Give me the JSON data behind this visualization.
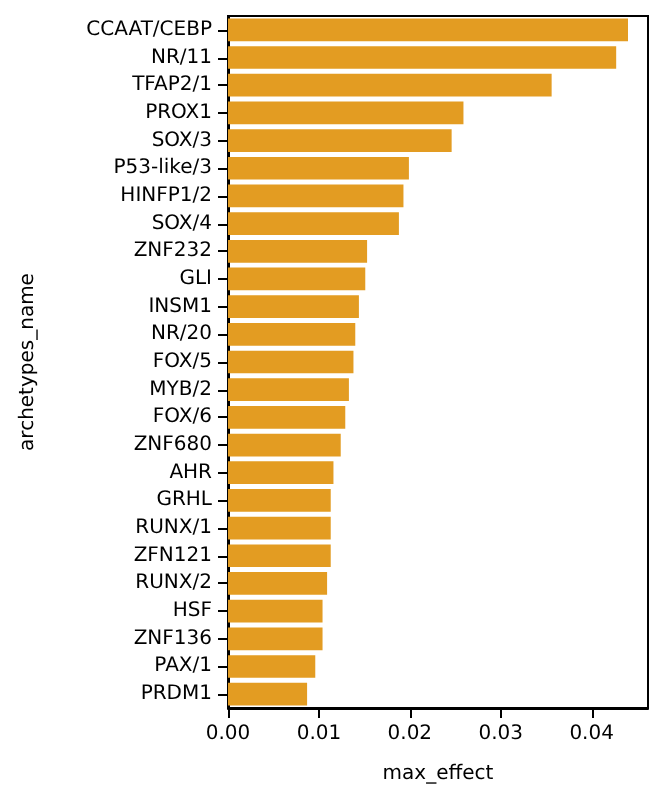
{
  "chart_data": {
    "type": "bar",
    "orientation": "horizontal",
    "xlabel": "max_effect",
    "ylabel": "archetypes_name",
    "categories": [
      "CCAAT/CEBP",
      "NR/11",
      "TFAP2/1",
      "PROX1",
      "SOX/3",
      "P53-like/3",
      "HINFP1/2",
      "SOX/4",
      "ZNF232",
      "GLI",
      "INSM1",
      "NR/20",
      "FOX/5",
      "MYB/2",
      "FOX/6",
      "ZNF680",
      "AHR",
      "GRHL",
      "RUNX/1",
      "ZFN121",
      "RUNX/2",
      "HSF",
      "ZNF136",
      "PAX/1",
      "PRDM1"
    ],
    "values": [
      0.044,
      0.0427,
      0.0356,
      0.0259,
      0.0246,
      0.0199,
      0.0193,
      0.0188,
      0.0153,
      0.0151,
      0.0144,
      0.014,
      0.0138,
      0.0133,
      0.0129,
      0.0124,
      0.0116,
      0.0113,
      0.0113,
      0.0113,
      0.0109,
      0.0104,
      0.0104,
      0.0096,
      0.0087
    ],
    "color": "#e39c22",
    "xlim": [
      0,
      0.0462
    ],
    "xticks": [
      {
        "value": 0,
        "label": "0.00"
      },
      {
        "value": 0.01,
        "label": "0.01"
      },
      {
        "value": 0.02,
        "label": "0.02"
      },
      {
        "value": 0.03,
        "label": "0.03"
      },
      {
        "value": 0.04,
        "label": "0.04"
      }
    ],
    "grid": false
  }
}
